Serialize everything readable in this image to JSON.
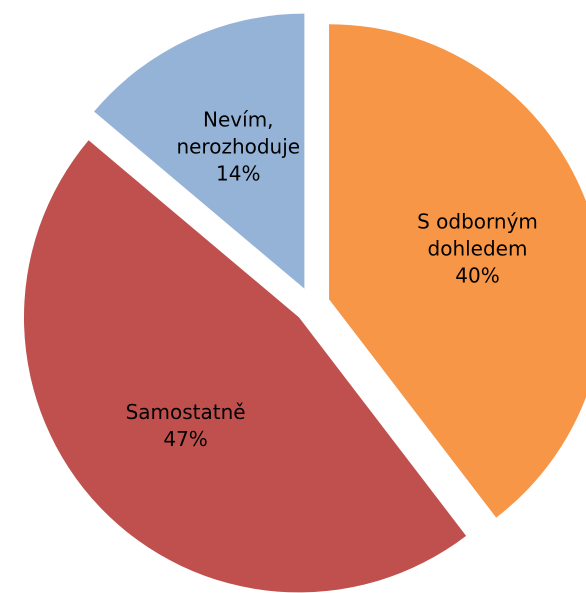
{
  "chart_data": {
    "type": "pie",
    "categories": [
      "S odborným dohledem",
      "Samostatně",
      "Nevím, nerozhoduje"
    ],
    "values": [
      40,
      47,
      14
    ],
    "value_labels": [
      "40%",
      "47%",
      "14%"
    ],
    "colors": [
      "#f79646",
      "#c0504d",
      "#95b3d7"
    ],
    "start_angle": 0,
    "direction": "clockwise",
    "exploded": true
  }
}
